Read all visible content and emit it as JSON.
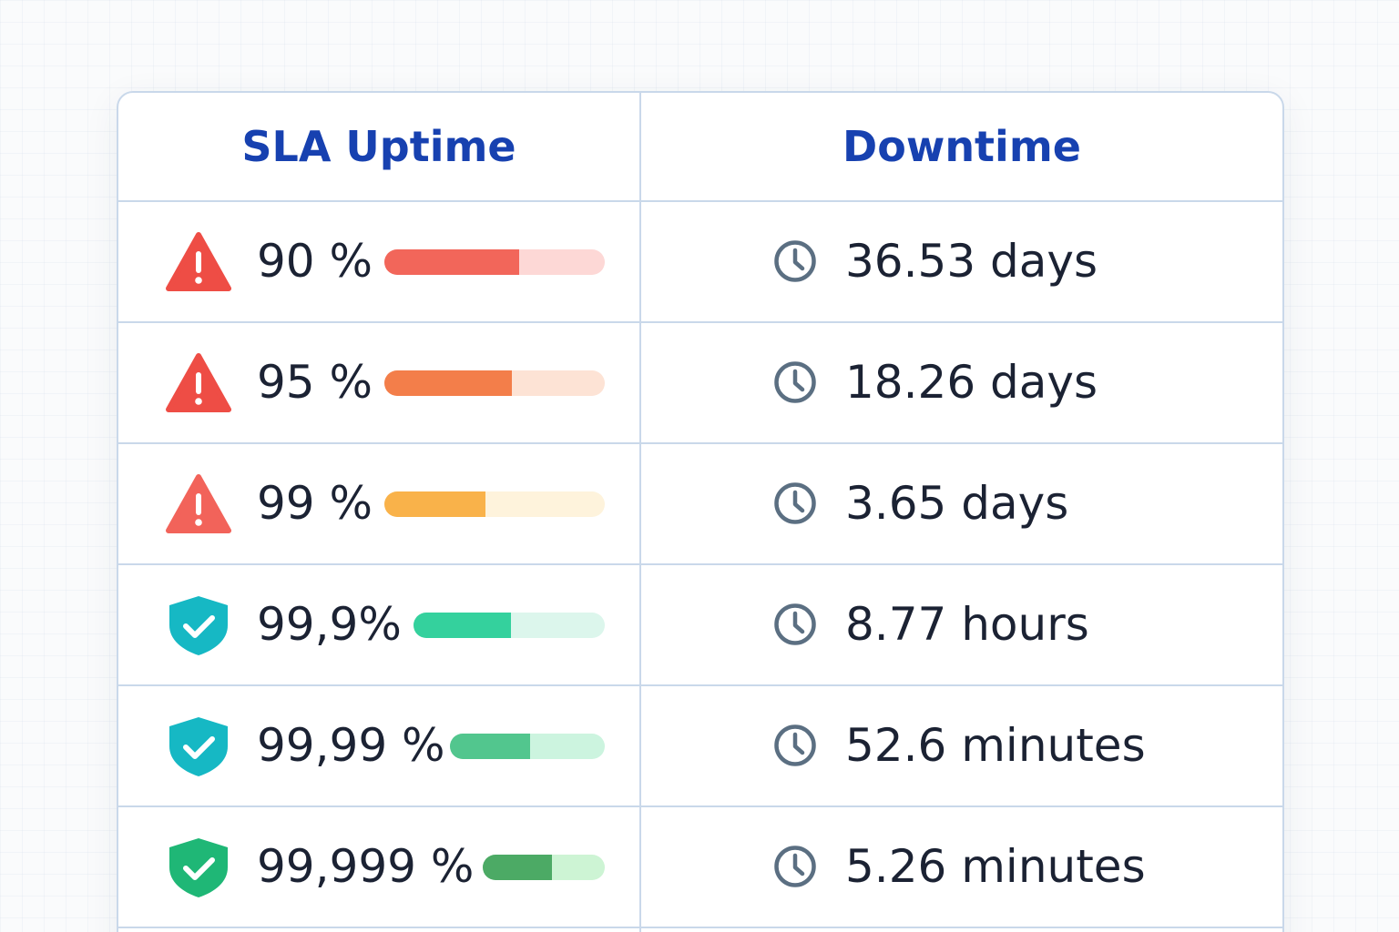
{
  "table": {
    "headers": {
      "uptime": "SLA Uptime",
      "downtime": "Downtime"
    },
    "rows": [
      {
        "uptime": "90 %",
        "downtime": "36.53 days",
        "status_icon": "warning-triangle-icon",
        "bar_fill_percent": 61,
        "bar_color": "#f2665a",
        "bar_track_color": "#fdd8d6",
        "icon_color": "#ee4d45"
      },
      {
        "uptime": "95 %",
        "downtime": "18.26 days",
        "status_icon": "warning-triangle-icon",
        "bar_fill_percent": 58,
        "bar_color": "#f37e4a",
        "bar_track_color": "#fde3d5",
        "icon_color": "#ee4d45"
      },
      {
        "uptime": "99 %",
        "downtime": "3.65 days",
        "status_icon": "warning-triangle-icon",
        "bar_fill_percent": 46,
        "bar_color": "#f9b24a",
        "bar_track_color": "#fef3dc",
        "icon_color": "#f2635a"
      },
      {
        "uptime": "99,9%",
        "downtime": "8.77 hours",
        "status_icon": "shield-check-icon",
        "bar_fill_percent": 51,
        "bar_color": "#34d19d",
        "bar_track_color": "#dcf6ec",
        "icon_color": "#16b8c4"
      },
      {
        "uptime": "99,99 %",
        "downtime": "52.6 minutes",
        "status_icon": "shield-check-icon",
        "bar_fill_percent": 52,
        "bar_color": "#52c68e",
        "bar_track_color": "#ccf4df",
        "icon_color": "#16b8c4"
      },
      {
        "uptime": "99,999 %",
        "downtime": "5.26 minutes",
        "status_icon": "shield-check-icon",
        "bar_fill_percent": 57,
        "bar_color": "#4caa65",
        "bar_track_color": "#cdf4d4",
        "icon_color": "#1fb776"
      }
    ]
  },
  "colors": {
    "header_text": "#1741b0",
    "body_text": "#1b2233",
    "border": "#c9d8ea",
    "clock_icon": "#5b6f82"
  },
  "icons": {
    "downtime": "clock-icon"
  }
}
